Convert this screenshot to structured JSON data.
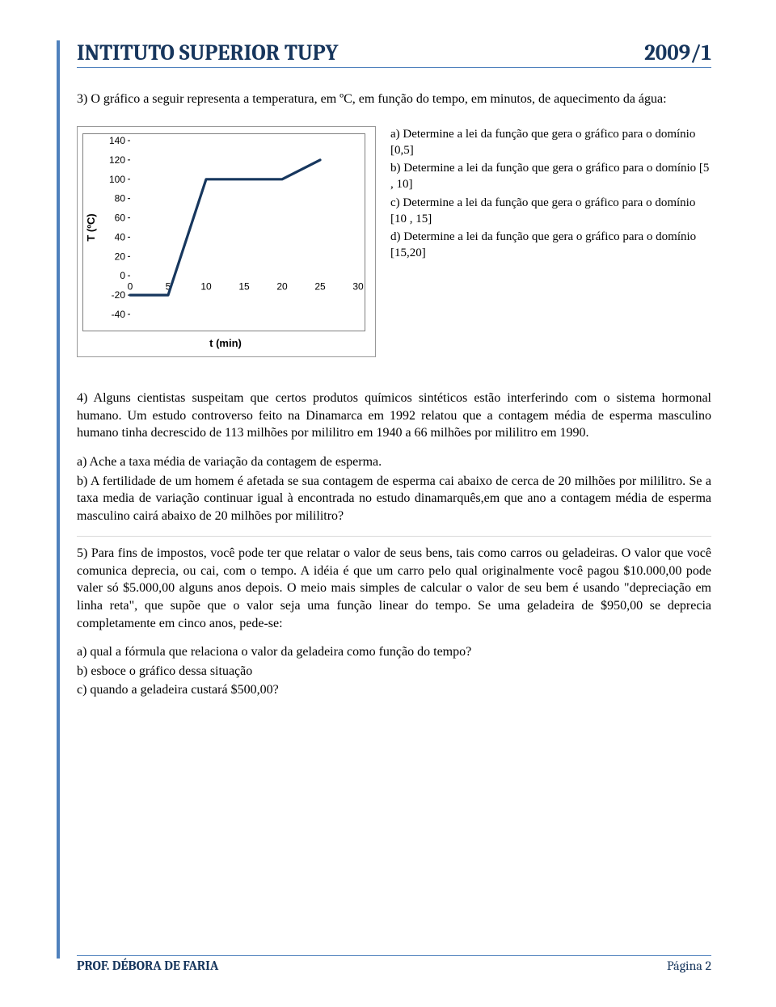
{
  "header": {
    "title": "INTITUTO SUPERIOR TUPY",
    "year": "2009/1"
  },
  "q3": {
    "intro": "3) O gráfico a seguir representa a temperatura, em ºC, em função do tempo, em minutos, de aquecimento da água:",
    "options": {
      "a": "a) Determine a lei da função que gera o gráfico para o domínio [0,5]",
      "b": "b) Determine a lei da função que gera o gráfico para o domínio [5 , 10]",
      "c": "c) Determine a lei da função que gera o gráfico para o domínio [10 , 15]",
      "d": "d) Determine a lei da função que gera o gráfico para o domínio [15,20]"
    }
  },
  "chart": {
    "type": "line",
    "x": [
      0,
      5,
      10,
      15,
      20,
      25,
      30
    ],
    "y": [
      -20,
      -20,
      100,
      100,
      100,
      120,
      null
    ],
    "xticks": [
      0,
      5,
      10,
      15,
      20,
      25,
      30
    ],
    "yticks": [
      -40,
      -20,
      0,
      20,
      40,
      60,
      80,
      100,
      120,
      140
    ],
    "xlim": [
      0,
      30
    ],
    "ylim": [
      -40,
      140
    ],
    "line_color": "#17375e",
    "line_width": 3.2,
    "plot_border_color": "#7f7f7f",
    "tick_color": "#000000",
    "tick_fontsize": 12,
    "ylabel": "T (ºC)",
    "xlabel": "t (min)",
    "label_fontsize": 13,
    "background_color": "#ffffff"
  },
  "q4": {
    "para": "4) Alguns cientistas suspeitam que certos produtos químicos sintéticos estão interferindo com o sistema hormonal humano. Um estudo controverso feito na Dinamarca em 1992 relatou que a contagem média de esperma masculino humano tinha decrescido de 113 milhões por mililitro em 1940 a 66 milhões por mililitro em 1990.",
    "a": "a) Ache a taxa média de variação da contagem de esperma.",
    "b": "b) A fertilidade de um homem é afetada se sua contagem de esperma cai abaixo de cerca de 20 milhões por mililitro. Se a taxa media de variação continuar igual à encontrada no estudo dinamarquês,em que ano a contagem média de esperma masculino cairá abaixo de 20 milhões por mililitro?"
  },
  "q5": {
    "para": "5) Para fins de impostos, você pode ter que relatar o valor de seus bens, tais como carros ou geladeiras. O valor que você comunica deprecia, ou cai, com o tempo. A idéia é que um carro pelo qual originalmente você pagou $10.000,00 pode valer só $5.000,00 alguns anos depois. O meio mais simples de calcular o valor de seu bem é usando \"depreciação em linha reta\", que supõe que o valor seja uma função linear do tempo. Se uma geladeira de $950,00 se deprecia completamente em cinco anos, pede-se:",
    "a": "a) qual a fórmula que relaciona o valor da geladeira como função do tempo?",
    "b": "b) esboce o gráfico dessa situação",
    "c": "c) quando a geladeira custará $500,00?"
  },
  "footer": {
    "left": "PROF. DÉBORA DE FARIA",
    "right": "Página 2"
  }
}
